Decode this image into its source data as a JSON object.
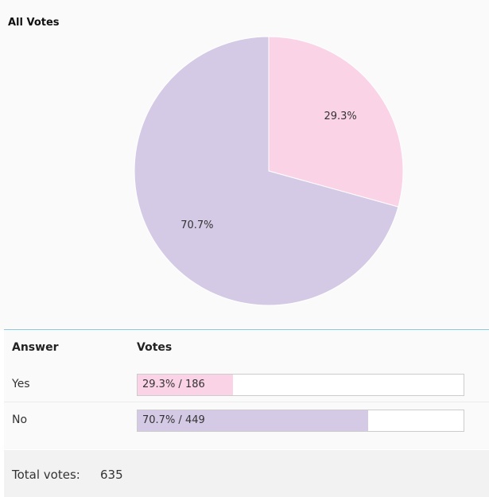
{
  "chart_data": {
    "type": "pie",
    "title": "All Votes",
    "categories": [
      "Yes",
      "No"
    ],
    "values": [
      29.3,
      70.7
    ],
    "labels": [
      "29.3%",
      "70.7%"
    ],
    "colors": [
      "#fad4e6",
      "#d4cae5"
    ],
    "legend": "none"
  },
  "results": {
    "header": {
      "answer": "Answer",
      "votes": "Votes"
    },
    "rows": [
      {
        "answer": "Yes",
        "percent": 29.3,
        "count": 186,
        "bar_text": "29.3% / 186",
        "color": "#fad4e6"
      },
      {
        "answer": "No",
        "percent": 70.7,
        "count": 449,
        "bar_text": "70.7% / 449",
        "color": "#d4cae5"
      }
    ]
  },
  "total": {
    "label": "Total votes:",
    "value": "635"
  }
}
